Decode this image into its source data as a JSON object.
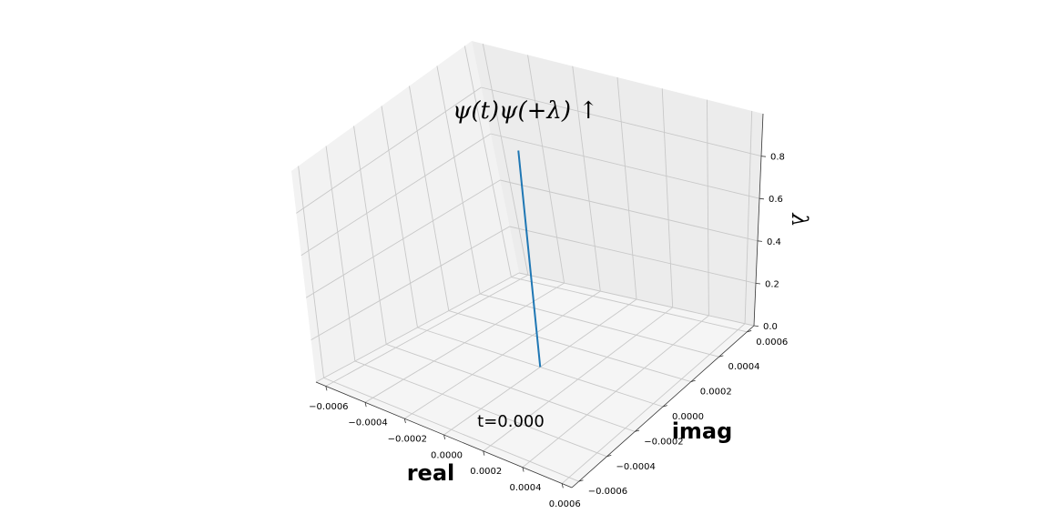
{
  "chart_data": {
    "type": "line",
    "projection": "3d",
    "title": "ψ(t)ψ(+λ) ↑",
    "annotation": "t=0.000",
    "xlabel": "real",
    "ylabel": "imag",
    "zlabel": "λ",
    "xlim": [
      -0.00065,
      0.00065
    ],
    "ylim": [
      -0.00065,
      0.00065
    ],
    "zlim": [
      0,
      1
    ],
    "grid": true,
    "xticks": [
      "−0.0006",
      "−0.0004",
      "−0.0002",
      "0.0000",
      "0.0002",
      "0.0004",
      "0.0006"
    ],
    "yticks": [
      "−0.0006",
      "−0.0004",
      "−0.0002",
      "0.0000",
      "0.0002",
      "0.0004",
      "0.0006"
    ],
    "zticks": [
      "0.0",
      "0.2",
      "0.4",
      "0.6",
      "0.8"
    ],
    "series": [
      {
        "color": "#1f77b4",
        "x": [
          0,
          0
        ],
        "y": [
          0,
          0
        ],
        "z": [
          0,
          1
        ]
      }
    ]
  }
}
